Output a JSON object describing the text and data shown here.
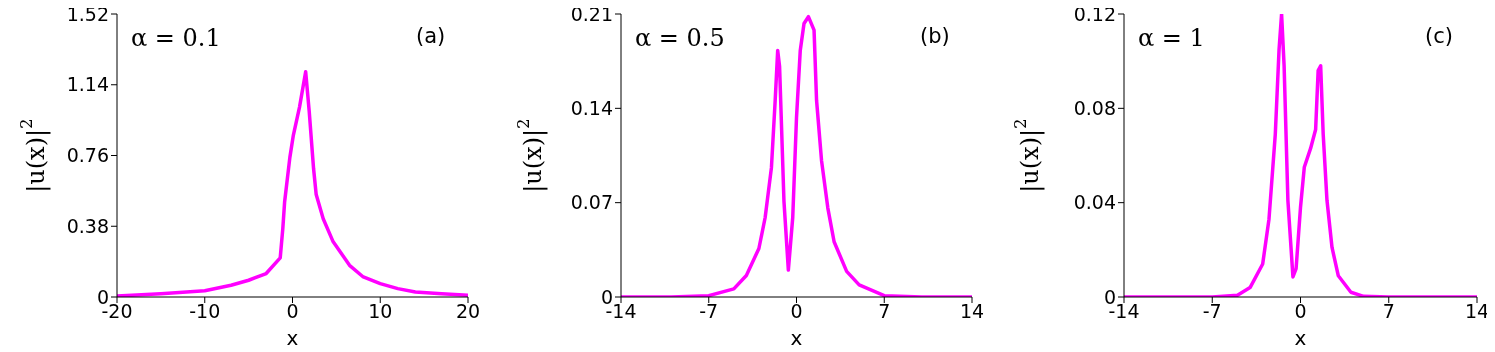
{
  "chart_data": [
    {
      "type": "line",
      "xlabel": "x",
      "ylabel": "|u(x)|$^{2}$",
      "annotations": [
        "α = 0.1",
        "(a)"
      ],
      "xlim": [
        -20,
        20
      ],
      "xticks": [
        -20,
        -10,
        0,
        10,
        20
      ],
      "ylim": [
        0,
        1.52
      ],
      "yticks": [
        0,
        0.38,
        0.76,
        1.14,
        1.52
      ],
      "x": [
        -20,
        -15,
        -10,
        -7,
        -5,
        -3,
        -1.4,
        -1.1,
        -0.9,
        -0.3,
        0.1,
        0.8,
        1.5,
        1.9,
        2.4,
        2.7,
        3.5,
        4.6,
        6.5,
        8,
        10,
        12,
        14,
        17,
        20
      ],
      "series": [
        {
          "color": "#ff00ff",
          "values": [
            0.005,
            0.018,
            0.034,
            0.063,
            0.09,
            0.126,
            0.21,
            0.37,
            0.51,
            0.75,
            0.87,
            1.02,
            1.21,
            1.0,
            0.69,
            0.55,
            0.42,
            0.3,
            0.17,
            0.11,
            0.072,
            0.045,
            0.027,
            0.017,
            0.01
          ]
        }
      ]
    },
    {
      "type": "line",
      "xlabel": "x",
      "ylabel": "|u(x)|$^{2}$",
      "annotations": [
        "α = 0.5",
        "(b)"
      ],
      "xlim": [
        -14,
        14
      ],
      "xticks": [
        -14,
        -7,
        0,
        7,
        14
      ],
      "ylim": [
        0,
        0.21
      ],
      "yticks": [
        0,
        0.07,
        0.14,
        0.21
      ],
      "x": [
        -14,
        -10,
        -7,
        -5,
        -4,
        -3,
        -2.5,
        -2,
        -1.7,
        -1.5,
        -1.35,
        -1,
        -0.65,
        -0.3,
        0,
        0.3,
        0.6,
        0.95,
        1.4,
        1.6,
        2,
        2.5,
        3,
        4,
        5,
        7,
        10,
        14
      ],
      "series": [
        {
          "color": "#ff00ff",
          "values": [
            0,
            0,
            0.001,
            0.006,
            0.016,
            0.036,
            0.059,
            0.096,
            0.146,
            0.183,
            0.171,
            0.071,
            0.02,
            0.059,
            0.133,
            0.183,
            0.203,
            0.208,
            0.198,
            0.146,
            0.101,
            0.066,
            0.041,
            0.019,
            0.009,
            0.001,
            0,
            0
          ]
        }
      ]
    },
    {
      "type": "line",
      "xlabel": "x",
      "ylabel": "|u(x)|$^{2}$",
      "annotations": [
        "α = 1",
        "(c)"
      ],
      "xlim": [
        -14,
        14
      ],
      "xticks": [
        -14,
        -7,
        0,
        7,
        14
      ],
      "ylim": [
        0,
        0.12
      ],
      "yticks": [
        0,
        0.04,
        0.08,
        0.12
      ],
      "x": [
        -14,
        -10,
        -7,
        -5,
        -4,
        -3,
        -2.5,
        -2,
        -1.7,
        -1.5,
        -1.3,
        -1,
        -0.6,
        -0.35,
        0,
        0.3,
        0.8,
        1.2,
        1.4,
        1.6,
        1.8,
        2.1,
        2.5,
        3,
        4,
        5,
        7,
        10,
        14
      ],
      "series": [
        {
          "color": "#ff00ff",
          "values": [
            0,
            0,
            0,
            0.0007,
            0.004,
            0.014,
            0.033,
            0.069,
            0.105,
            0.12,
            0.098,
            0.041,
            0.0085,
            0.012,
            0.038,
            0.055,
            0.063,
            0.071,
            0.096,
            0.098,
            0.069,
            0.041,
            0.021,
            0.009,
            0.002,
            0.0003,
            0,
            0,
            0
          ]
        }
      ]
    }
  ]
}
